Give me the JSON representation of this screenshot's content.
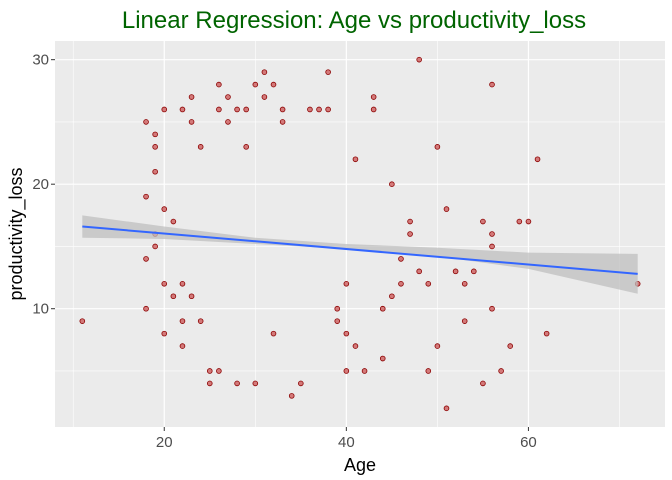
{
  "chart_data": {
    "type": "scatter",
    "title": "Linear Regression: Age vs productivity_loss",
    "xlabel": "Age",
    "ylabel": "productivity_loss",
    "xlim": [
      8,
      75
    ],
    "ylim": [
      0.5,
      31.5
    ],
    "x_ticks": [
      20,
      40,
      60
    ],
    "y_ticks": [
      10,
      20,
      30
    ],
    "grid": true,
    "colors": {
      "title": "#006400",
      "panel": "#ebebeb",
      "grid": "#ffffff",
      "point_fill": "#cd5c5c",
      "point_stroke": "#8b0000",
      "trend_line": "#3366ff",
      "confidence_band": "#bfbfbf"
    },
    "trend_line": {
      "x": [
        11,
        72
      ],
      "y": [
        16.6,
        12.8
      ]
    },
    "confidence_band": {
      "x": [
        11,
        20,
        30,
        40,
        50,
        60,
        72
      ],
      "lower": [
        15.7,
        15.6,
        15.2,
        14.8,
        14.2,
        13.2,
        11.2
      ],
      "upper": [
        17.5,
        16.6,
        15.7,
        15.2,
        14.9,
        14.5,
        14.4
      ]
    },
    "series": [
      {
        "type": "scatter",
        "points": [
          [
            11,
            9
          ],
          [
            18,
            25
          ],
          [
            18,
            19
          ],
          [
            18,
            14
          ],
          [
            18,
            10
          ],
          [
            19,
            24
          ],
          [
            19,
            23
          ],
          [
            19,
            21
          ],
          [
            19,
            16
          ],
          [
            19,
            15
          ],
          [
            20,
            26
          ],
          [
            20,
            18
          ],
          [
            20,
            12
          ],
          [
            20,
            8
          ],
          [
            21,
            17
          ],
          [
            21,
            11
          ],
          [
            22,
            26
          ],
          [
            22,
            12
          ],
          [
            22,
            9
          ],
          [
            22,
            7
          ],
          [
            23,
            27
          ],
          [
            23,
            25
          ],
          [
            23,
            11
          ],
          [
            24,
            23
          ],
          [
            24,
            9
          ],
          [
            25,
            5
          ],
          [
            25,
            4
          ],
          [
            26,
            28
          ],
          [
            26,
            26
          ],
          [
            26,
            5
          ],
          [
            27,
            25
          ],
          [
            27,
            27
          ],
          [
            28,
            26
          ],
          [
            28,
            4
          ],
          [
            29,
            23
          ],
          [
            29,
            26
          ],
          [
            30,
            28
          ],
          [
            30,
            4
          ],
          [
            31,
            29
          ],
          [
            31,
            27
          ],
          [
            32,
            28
          ],
          [
            32,
            8
          ],
          [
            33,
            26
          ],
          [
            33,
            25
          ],
          [
            34,
            3
          ],
          [
            35,
            4
          ],
          [
            36,
            26
          ],
          [
            37,
            26
          ],
          [
            38,
            29
          ],
          [
            38,
            26
          ],
          [
            39,
            10
          ],
          [
            39,
            9
          ],
          [
            40,
            12
          ],
          [
            40,
            8
          ],
          [
            40,
            5
          ],
          [
            41,
            7
          ],
          [
            41,
            22
          ],
          [
            42,
            5
          ],
          [
            43,
            27
          ],
          [
            43,
            26
          ],
          [
            44,
            6
          ],
          [
            44,
            10
          ],
          [
            45,
            20
          ],
          [
            45,
            11
          ],
          [
            46,
            12
          ],
          [
            46,
            14
          ],
          [
            47,
            17
          ],
          [
            47,
            16
          ],
          [
            48,
            30
          ],
          [
            48,
            13
          ],
          [
            49,
            5
          ],
          [
            49,
            12
          ],
          [
            50,
            23
          ],
          [
            50,
            7
          ],
          [
            51,
            2
          ],
          [
            51,
            18
          ],
          [
            52,
            13
          ],
          [
            53,
            12
          ],
          [
            53,
            9
          ],
          [
            54,
            13
          ],
          [
            55,
            17
          ],
          [
            55,
            4
          ],
          [
            56,
            28
          ],
          [
            56,
            10
          ],
          [
            56,
            16
          ],
          [
            56,
            15
          ],
          [
            57,
            5
          ],
          [
            58,
            7
          ],
          [
            59,
            17
          ],
          [
            60,
            17
          ],
          [
            61,
            22
          ],
          [
            62,
            8
          ],
          [
            72,
            12
          ]
        ]
      }
    ]
  }
}
